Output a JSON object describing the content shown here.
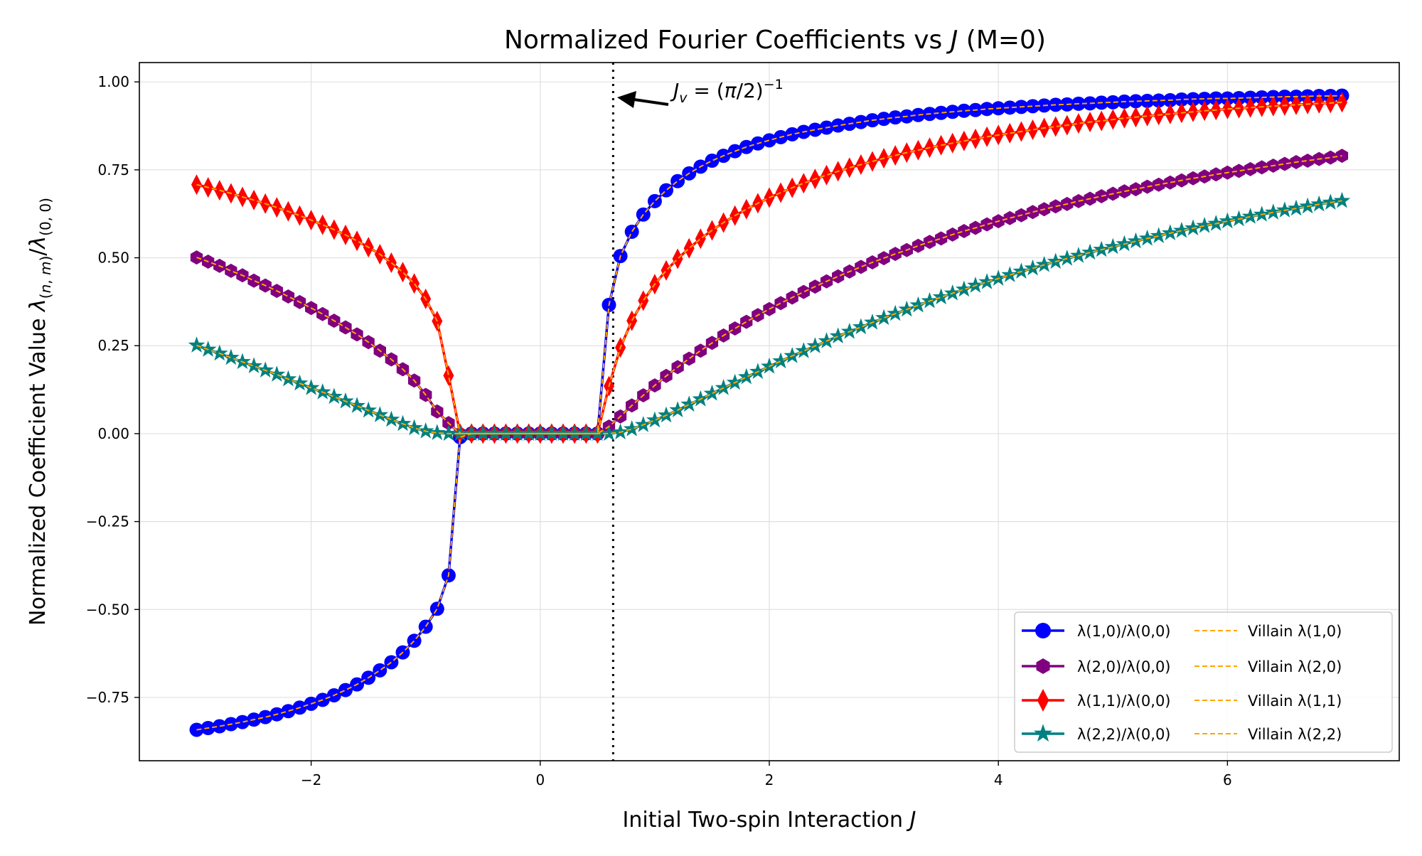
{
  "chart_data": {
    "type": "line",
    "title": "Normalized Fourier Coefficients vs J (M=0)",
    "xlabel": "Initial Two-spin Interaction J",
    "ylabel": "Normalized Coefficient Value λ(n,m)/λ(0,0)",
    "xlim": [
      -3.5,
      7.5
    ],
    "ylim": [
      -0.93,
      1.055
    ],
    "xticks": [
      -2,
      0,
      2,
      4,
      6
    ],
    "xtick_labels": [
      "−2",
      "0",
      "2",
      "4",
      "6"
    ],
    "yticks": [
      1.0,
      0.75,
      0.5,
      0.25,
      0.0,
      -0.25,
      -0.5,
      -0.75
    ],
    "ytick_labels": [
      "1.00",
      "0.75",
      "0.50",
      "0.25",
      "0.00",
      "−0.25",
      "−0.50",
      "−0.75"
    ],
    "grid": true,
    "legend_position": "lower-right",
    "annotation": {
      "text": "J_v = (π/2)^−1",
      "x": 0.6366
    },
    "x_range": [
      -3,
      7
    ],
    "num_points": 101,
    "series": [
      {
        "name": "λ(1,0)/λ(0,0)",
        "color": "#0000ff",
        "marker": "circle",
        "values": [
          -0.842,
          -0.837,
          -0.832,
          -0.826,
          -0.82,
          -0.813,
          -0.806,
          -0.798,
          -0.789,
          -0.779,
          -0.768,
          -0.757,
          -0.744,
          -0.729,
          -0.713,
          -0.694,
          -0.673,
          -0.65,
          -0.622,
          -0.589,
          -0.549,
          -0.498,
          -0.403,
          -0.01,
          0,
          0,
          0,
          0,
          0,
          0,
          0,
          0,
          0,
          0,
          0,
          0,
          0.366,
          0.505,
          0.574,
          0.623,
          0.661,
          0.692,
          0.718,
          0.74,
          0.759,
          0.776,
          0.79,
          0.803,
          0.815,
          0.825,
          0.834,
          0.843,
          0.851,
          0.858,
          0.864,
          0.87,
          0.876,
          0.881,
          0.886,
          0.891,
          0.895,
          0.899,
          0.902,
          0.906,
          0.909,
          0.912,
          0.915,
          0.918,
          0.92,
          0.923,
          0.925,
          0.927,
          0.929,
          0.931,
          0.933,
          0.935,
          0.936,
          0.938,
          0.939,
          0.941,
          0.942,
          0.944,
          0.945,
          0.946,
          0.947,
          0.948,
          0.95,
          0.951,
          0.952,
          0.953,
          0.953,
          0.954,
          0.955,
          0.956,
          0.957,
          0.958,
          0.958,
          0.959,
          0.96,
          0.96,
          0.961
        ]
      },
      {
        "name": "λ(2,0)/λ(0,0)",
        "color": "#800080",
        "marker": "hexagon",
        "values": [
          0.501,
          0.489,
          0.477,
          0.463,
          0.45,
          0.435,
          0.421,
          0.406,
          0.39,
          0.374,
          0.357,
          0.34,
          0.321,
          0.302,
          0.282,
          0.26,
          0.236,
          0.211,
          0.183,
          0.151,
          0.11,
          0.063,
          0.03,
          0,
          0,
          0,
          0,
          0,
          0,
          0,
          0,
          0,
          0,
          0,
          0,
          0,
          0.02,
          0.049,
          0.08,
          0.109,
          0.137,
          0.164,
          0.189,
          0.213,
          0.236,
          0.258,
          0.279,
          0.299,
          0.318,
          0.337,
          0.354,
          0.371,
          0.387,
          0.403,
          0.418,
          0.433,
          0.447,
          0.461,
          0.474,
          0.487,
          0.499,
          0.511,
          0.522,
          0.534,
          0.545,
          0.555,
          0.566,
          0.576,
          0.585,
          0.595,
          0.604,
          0.613,
          0.621,
          0.63,
          0.638,
          0.646,
          0.653,
          0.661,
          0.668,
          0.675,
          0.682,
          0.689,
          0.695,
          0.702,
          0.708,
          0.714,
          0.72,
          0.726,
          0.731,
          0.737,
          0.742,
          0.747,
          0.752,
          0.757,
          0.762,
          0.767,
          0.772,
          0.776,
          0.781,
          0.785,
          0.79
        ]
      },
      {
        "name": "λ(1,1)/λ(0,0)",
        "color": "#ff0000",
        "marker": "diamond",
        "values": [
          0.708,
          0.7,
          0.692,
          0.683,
          0.673,
          0.664,
          0.654,
          0.643,
          0.632,
          0.62,
          0.607,
          0.594,
          0.58,
          0.565,
          0.548,
          0.53,
          0.51,
          0.486,
          0.459,
          0.427,
          0.383,
          0.32,
          0.165,
          0,
          0,
          0,
          0,
          0,
          0,
          0,
          0,
          0,
          0,
          0,
          0,
          0,
          0.135,
          0.245,
          0.321,
          0.378,
          0.425,
          0.464,
          0.497,
          0.527,
          0.554,
          0.578,
          0.6,
          0.62,
          0.638,
          0.655,
          0.671,
          0.685,
          0.699,
          0.712,
          0.724,
          0.735,
          0.746,
          0.756,
          0.765,
          0.774,
          0.783,
          0.791,
          0.799,
          0.806,
          0.813,
          0.82,
          0.826,
          0.832,
          0.838,
          0.844,
          0.849,
          0.854,
          0.859,
          0.864,
          0.869,
          0.873,
          0.877,
          0.882,
          0.886,
          0.889,
          0.893,
          0.897,
          0.9,
          0.903,
          0.906,
          0.909,
          0.912,
          0.915,
          0.918,
          0.92,
          0.923,
          0.925,
          0.927,
          0.929,
          0.931,
          0.933,
          0.935,
          0.937,
          0.939,
          0.94,
          0.942
        ]
      },
      {
        "name": "λ(2,2)/λ(0,0)",
        "color": "#008080",
        "marker": "star",
        "values": [
          0.251,
          0.239,
          0.228,
          0.216,
          0.204,
          0.192,
          0.18,
          0.168,
          0.155,
          0.143,
          0.13,
          0.118,
          0.105,
          0.092,
          0.079,
          0.066,
          0.053,
          0.04,
          0.028,
          0.016,
          0.007,
          0.002,
          0,
          0,
          0,
          0,
          0,
          0,
          0,
          0,
          0,
          0,
          0,
          0,
          0,
          0,
          0,
          0.004,
          0.013,
          0.025,
          0.038,
          0.052,
          0.067,
          0.083,
          0.098,
          0.114,
          0.13,
          0.145,
          0.161,
          0.176,
          0.191,
          0.206,
          0.221,
          0.235,
          0.249,
          0.263,
          0.277,
          0.29,
          0.303,
          0.316,
          0.329,
          0.341,
          0.353,
          0.365,
          0.377,
          0.388,
          0.399,
          0.41,
          0.421,
          0.431,
          0.441,
          0.451,
          0.461,
          0.47,
          0.48,
          0.489,
          0.498,
          0.506,
          0.515,
          0.523,
          0.531,
          0.539,
          0.547,
          0.555,
          0.562,
          0.57,
          0.577,
          0.584,
          0.591,
          0.597,
          0.604,
          0.61,
          0.617,
          0.623,
          0.629,
          0.635,
          0.64,
          0.646,
          0.652,
          0.657,
          0.662
        ]
      }
    ],
    "villain_series": [
      {
        "name": "Villain λ(1,0)",
        "color": "#ffa500",
        "style": "dashed"
      },
      {
        "name": "Villain λ(2,0)",
        "color": "#ffa500",
        "style": "dashed"
      },
      {
        "name": "Villain λ(1,1)",
        "color": "#ffa500",
        "style": "dashed"
      },
      {
        "name": "Villain λ(2,2)",
        "color": "#ffa500",
        "style": "dashed"
      }
    ]
  }
}
